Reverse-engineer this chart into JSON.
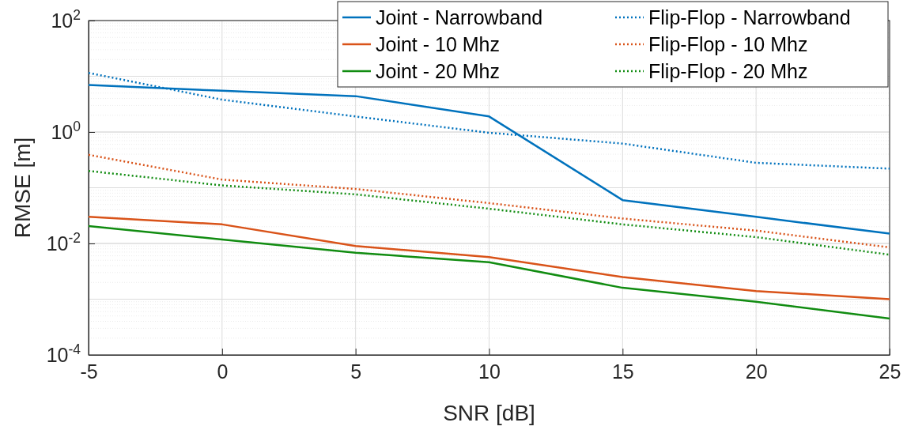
{
  "chart_data": {
    "type": "line",
    "xlabel": "SNR [dB]",
    "ylabel": "RMSE [m]",
    "x": [
      -5,
      0,
      5,
      10,
      15,
      20,
      25
    ],
    "log": "y",
    "grid": true,
    "legend": "top right",
    "marker": "none",
    "xlim": [
      -5,
      25
    ],
    "xticks": [
      -5,
      0,
      5,
      10,
      15,
      20,
      25
    ],
    "ylim": [
      0.0001,
      100
    ],
    "yticks": [
      {
        "value": 0.0001,
        "label": "10$^{-4}$"
      },
      {
        "value": 0.01,
        "label": "10$^{-2}$"
      },
      {
        "value": 1,
        "label": "10$^{0}$"
      },
      {
        "value": 100,
        "label": "10$^{2}$"
      }
    ],
    "series": [
      {
        "name": "Joint - Narrowband",
        "color": "#0072bd",
        "line_style": "solid",
        "values": [
          7,
          5.5,
          4.4,
          1.9,
          0.06,
          0.03,
          0.015
        ]
      },
      {
        "name": "Flip-Flop - Narrowband",
        "color": "#0072bd",
        "line_style": "dotted",
        "values": [
          11.5,
          3.8,
          1.9,
          0.97,
          0.62,
          0.28,
          0.22
        ]
      },
      {
        "name": "Joint - 10 Mhz",
        "color": "#d95319",
        "line_style": "solid",
        "values": [
          0.03,
          0.022,
          0.009,
          0.0057,
          0.0025,
          0.0014,
          0.001
        ]
      },
      {
        "name": "Flip-Flop - 10 Mhz",
        "color": "#d95319",
        "line_style": "dotted",
        "values": [
          0.39,
          0.14,
          0.095,
          0.053,
          0.028,
          0.017,
          0.0085
        ]
      },
      {
        "name": "Joint - 20 Mhz",
        "color": "#118c11",
        "line_style": "solid",
        "values": [
          0.0205,
          0.0118,
          0.0068,
          0.0046,
          0.0016,
          0.0009,
          0.00045
        ]
      },
      {
        "name": "Flip-Flop - 20 Mhz",
        "color": "#118c11",
        "line_style": "dotted",
        "values": [
          0.2,
          0.11,
          0.076,
          0.042,
          0.022,
          0.013,
          0.0063
        ]
      }
    ]
  }
}
